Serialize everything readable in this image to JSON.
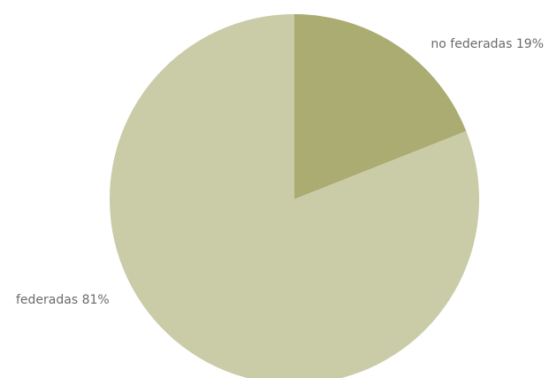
{
  "chart_data": {
    "type": "pie",
    "slices": [
      {
        "label": "no federadas 19%",
        "value": 19,
        "color": "#abac72"
      },
      {
        "label": "federadas 81%",
        "value": 81,
        "color": "#c9cca7"
      }
    ],
    "start_angle": "12 o'clock",
    "direction": "clockwise",
    "legend": "none",
    "labels": "outside"
  }
}
